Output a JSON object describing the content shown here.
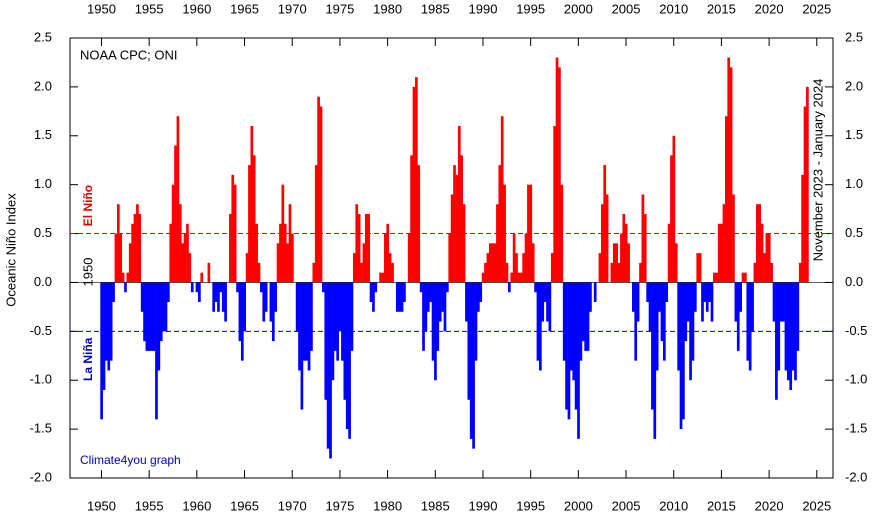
{
  "chart_data": {
    "type": "bar",
    "title": "NOAA CPC; ONI",
    "ylabel": "Oceanic Niño Index",
    "annotations": [
      "1950",
      "November 2023 - January 2024",
      "Climate4you graph"
    ],
    "reference_lines": [
      {
        "value": 0.5,
        "label": "El Niño",
        "color": "#e00000"
      },
      {
        "value": -0.5,
        "label": "La Niña",
        "color": "#0000c0"
      }
    ],
    "positive_color": "#ff0000",
    "negative_color": "#0000ff",
    "xlim": [
      1946.7,
      2026.7
    ],
    "xticks": [
      1950,
      1955,
      1960,
      1965,
      1970,
      1975,
      1980,
      1985,
      1990,
      1995,
      2000,
      2005,
      2010,
      2015,
      2020,
      2025
    ],
    "ylim": [
      -2.0,
      2.5
    ],
    "yticks": [
      {
        "value": -2,
        "label": "-2.0"
      },
      -1.5,
      {
        "value": -1,
        "label": "-1.0"
      },
      -0.5,
      {
        "value": 0,
        "label": "0.0"
      },
      0.5,
      {
        "value": 1,
        "label": "1.0"
      },
      1.5,
      {
        "value": 2,
        "label": "2.0"
      },
      2.5
    ],
    "x": [
      1950,
      1950.25,
      1950.5,
      1950.75,
      1951,
      1951.25,
      1951.5,
      1951.75,
      1952,
      1952.25,
      1952.5,
      1952.75,
      1953,
      1953.25,
      1953.5,
      1953.75,
      1954,
      1954.25,
      1954.5,
      1954.75,
      1955,
      1955.25,
      1955.5,
      1955.75,
      1956,
      1956.25,
      1956.5,
      1956.75,
      1957,
      1957.25,
      1957.5,
      1957.75,
      1958,
      1958.25,
      1958.5,
      1958.75,
      1959,
      1959.25,
      1959.5,
      1959.75,
      1960,
      1960.25,
      1960.5,
      1960.75,
      1961,
      1961.25,
      1961.5,
      1961.75,
      1962,
      1962.25,
      1962.5,
      1962.75,
      1963,
      1963.25,
      1963.5,
      1963.75,
      1964,
      1964.25,
      1964.5,
      1964.75,
      1965,
      1965.25,
      1965.5,
      1965.75,
      1966,
      1966.25,
      1966.5,
      1966.75,
      1967,
      1967.25,
      1967.5,
      1967.75,
      1968,
      1968.25,
      1968.5,
      1968.75,
      1969,
      1969.25,
      1969.5,
      1969.75,
      1970,
      1970.25,
      1970.5,
      1970.75,
      1971,
      1971.25,
      1971.5,
      1971.75,
      1972,
      1972.25,
      1972.5,
      1972.75,
      1973,
      1973.25,
      1973.5,
      1973.75,
      1974,
      1974.25,
      1974.5,
      1974.75,
      1975,
      1975.25,
      1975.5,
      1975.75,
      1976,
      1976.25,
      1976.5,
      1976.75,
      1977,
      1977.25,
      1977.5,
      1977.75,
      1978,
      1978.25,
      1978.5,
      1978.75,
      1979,
      1979.25,
      1979.5,
      1979.75,
      1980,
      1980.25,
      1980.5,
      1980.75,
      1981,
      1981.25,
      1981.5,
      1981.75,
      1982,
      1982.25,
      1982.5,
      1982.75,
      1983,
      1983.25,
      1983.5,
      1983.75,
      1984,
      1984.25,
      1984.5,
      1984.75,
      1985,
      1985.25,
      1985.5,
      1985.75,
      1986,
      1986.25,
      1986.5,
      1986.75,
      1987,
      1987.25,
      1987.5,
      1987.75,
      1988,
      1988.25,
      1988.5,
      1988.75,
      1989,
      1989.25,
      1989.5,
      1989.75,
      1990,
      1990.25,
      1990.5,
      1990.75,
      1991,
      1991.25,
      1991.5,
      1991.75,
      1992,
      1992.25,
      1992.5,
      1992.75,
      1993,
      1993.25,
      1993.5,
      1993.75,
      1994,
      1994.25,
      1994.5,
      1994.75,
      1995,
      1995.25,
      1995.5,
      1995.75,
      1996,
      1996.25,
      1996.5,
      1996.75,
      1997,
      1997.25,
      1997.5,
      1997.75,
      1998,
      1998.25,
      1998.5,
      1998.75,
      1999,
      1999.25,
      1999.5,
      1999.75,
      2000,
      2000.25,
      2000.5,
      2000.75,
      2001,
      2001.25,
      2001.5,
      2001.75,
      2002,
      2002.25,
      2002.5,
      2002.75,
      2003,
      2003.25,
      2003.5,
      2003.75,
      2004,
      2004.25,
      2004.5,
      2004.75,
      2005,
      2005.25,
      2005.5,
      2005.75,
      2006,
      2006.25,
      2006.5,
      2006.75,
      2007,
      2007.25,
      2007.5,
      2007.75,
      2008,
      2008.25,
      2008.5,
      2008.75,
      2009,
      2009.25,
      2009.5,
      2009.75,
      2010,
      2010.25,
      2010.5,
      2010.75,
      2011,
      2011.25,
      2011.5,
      2011.75,
      2012,
      2012.25,
      2012.5,
      2012.75,
      2013,
      2013.25,
      2013.5,
      2013.75,
      2014,
      2014.25,
      2014.5,
      2014.75,
      2015,
      2015.25,
      2015.5,
      2015.75,
      2016,
      2016.25,
      2016.5,
      2016.75,
      2017,
      2017.25,
      2017.5,
      2017.75,
      2018,
      2018.25,
      2018.5,
      2018.75,
      2019,
      2019.25,
      2019.5,
      2019.75,
      2020,
      2020.25,
      2020.5,
      2020.75,
      2021,
      2021.25,
      2021.5,
      2021.75,
      2022,
      2022.25,
      2022.5,
      2022.75,
      2023,
      2023.25,
      2023.5,
      2023.75,
      2024
    ],
    "values": [
      -1.4,
      -1.1,
      -0.8,
      -0.9,
      -0.8,
      -0.2,
      0.5,
      0.8,
      0.5,
      0.1,
      -0.1,
      0.1,
      0.4,
      0.6,
      0.7,
      0.8,
      0.7,
      -0.3,
      -0.6,
      -0.7,
      -0.7,
      -0.7,
      -0.7,
      -1.4,
      -0.9,
      -0.6,
      -0.5,
      -0.5,
      -0.2,
      0.6,
      1.0,
      1.4,
      1.7,
      0.8,
      0.4,
      0.5,
      0.6,
      0.3,
      -0.1,
      0.0,
      -0.1,
      -0.2,
      0.1,
      0.0,
      0.0,
      0.2,
      0.0,
      -0.3,
      -0.2,
      -0.3,
      -0.1,
      -0.3,
      -0.4,
      0.0,
      0.7,
      1.1,
      1.0,
      -0.1,
      -0.6,
      -0.8,
      -0.5,
      0.3,
      1.2,
      1.6,
      1.3,
      0.6,
      0.2,
      -0.1,
      -0.4,
      -0.3,
      0.0,
      -0.4,
      -0.6,
      -0.3,
      0.4,
      0.6,
      1.0,
      0.6,
      0.4,
      0.8,
      0.5,
      0.0,
      -0.5,
      -0.9,
      -1.3,
      -0.8,
      -0.8,
      -0.9,
      -0.7,
      0.2,
      1.2,
      1.9,
      1.8,
      -0.1,
      -1.2,
      -1.7,
      -1.8,
      -1.0,
      -0.7,
      -0.8,
      -0.5,
      -0.8,
      -1.2,
      -1.5,
      -1.6,
      -0.7,
      0.3,
      0.8,
      0.7,
      0.2,
      0.4,
      0.7,
      0.7,
      -0.2,
      -0.3,
      -0.1,
      0.0,
      0.1,
      0.1,
      0.5,
      0.6,
      0.3,
      0.2,
      0.0,
      -0.3,
      -0.3,
      -0.3,
      -0.2,
      0.0,
      0.5,
      1.3,
      2.0,
      2.1,
      1.2,
      -0.1,
      -0.7,
      -0.5,
      -0.3,
      -0.2,
      -0.8,
      -1.0,
      -0.7,
      -0.4,
      -0.3,
      -0.5,
      -0.1,
      0.5,
      0.9,
      1.2,
      1.1,
      1.6,
      1.3,
      0.8,
      -0.4,
      -1.2,
      -1.6,
      -1.7,
      -0.8,
      -0.3,
      -0.2,
      0.1,
      0.2,
      0.3,
      0.4,
      0.4,
      0.4,
      0.8,
      1.2,
      1.7,
      1.0,
      0.2,
      -0.1,
      0.1,
      0.5,
      0.3,
      0.1,
      0.1,
      0.3,
      0.5,
      1.0,
      1.0,
      0.4,
      -0.1,
      -0.8,
      -0.9,
      -0.4,
      -0.2,
      -0.4,
      -0.5,
      0.3,
      1.6,
      2.3,
      2.2,
      1.0,
      -0.8,
      -1.3,
      -1.4,
      -0.9,
      -1.0,
      -1.3,
      -1.6,
      -0.8,
      -0.6,
      -0.7,
      -0.7,
      -0.3,
      0.0,
      -0.2,
      0.0,
      0.3,
      0.8,
      1.2,
      0.9,
      0.0,
      0.2,
      0.4,
      0.4,
      0.2,
      0.5,
      0.7,
      0.6,
      0.4,
      0.0,
      -0.3,
      -0.8,
      -0.4,
      0.2,
      0.9,
      0.7,
      -0.2,
      -0.5,
      -1.3,
      -1.6,
      -0.9,
      -0.3,
      -0.6,
      -0.8,
      -0.2,
      0.6,
      1.3,
      1.5,
      0.4,
      -0.9,
      -1.5,
      -1.4,
      -0.6,
      -0.4,
      -1.0,
      -0.8,
      -0.3,
      0.3,
      0.3,
      -0.4,
      -0.2,
      -0.3,
      -0.2,
      -0.4,
      0.1,
      0.1,
      0.6,
      0.6,
      0.8,
      1.7,
      2.3,
      2.2,
      0.9,
      -0.4,
      -0.7,
      -0.3,
      0.1,
      0.1,
      -0.8,
      -0.9,
      -0.5,
      0.2,
      0.8,
      0.8,
      0.6,
      0.3,
      0.5,
      0.5,
      0.2,
      -0.4,
      -1.2,
      -0.9,
      -0.4,
      -0.4,
      -0.9,
      -1.0,
      -1.1,
      -0.9,
      -1.0,
      -0.7,
      0.2,
      1.1,
      1.8,
      2.0
    ]
  }
}
